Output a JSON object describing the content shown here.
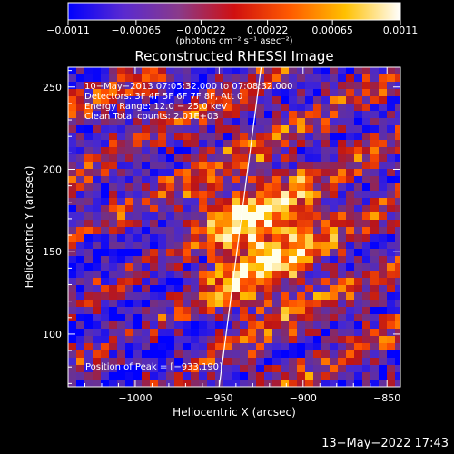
{
  "chart_data": {
    "type": "heatmap",
    "title": "Reconstructed RHESSI Image",
    "xlabel": "Heliocentric X (arcsec)",
    "ylabel": "Heliocentric Y (arcsec)",
    "xlim": [
      -1040,
      -842
    ],
    "ylim": [
      68,
      262
    ],
    "x_ticks": [
      -1000,
      -950,
      -900,
      -850
    ],
    "x_tick_labels": [
      "−1000",
      "−950",
      "−900",
      "−850"
    ],
    "y_ticks": [
      100,
      150,
      200,
      250
    ],
    "y_tick_labels": [
      "100",
      "150",
      "200",
      "250"
    ],
    "colorbar": {
      "range": [
        -0.0011,
        0.0011
      ],
      "ticks": [
        -0.0011,
        -0.00065,
        -0.00022,
        0.00022,
        0.00065,
        0.0011
      ],
      "tick_labels": [
        "−0.0011",
        "−0.00065",
        "−0.00022",
        "0.00022",
        "0.00065",
        "0.0011"
      ],
      "units": "(photons cm⁻² s⁻¹ asec⁻²)",
      "colors": [
        "#0000ff",
        "#5a2ad0",
        "#8a3a8a",
        "#d01010",
        "#ff5a00",
        "#ffc000",
        "#ffffff"
      ]
    },
    "annotations": [
      "10−May−2013 07:05:32.000 to 07:08:32.000",
      "Detectors: 3F 4F 5F 6F 7F 8F, Att 0",
      "Energy Range: 12.0 − 25.0 keV",
      "Clean     Total counts: 2.01E+03"
    ],
    "peak_label": "Position of Peak = [−933,190]",
    "peak": [
      -933,
      190
    ],
    "source_center": [
      -930,
      160
    ],
    "limb_line": [
      [
        -950,
        68
      ],
      [
        -925,
        262
      ]
    ],
    "grid": false
  },
  "footer": {
    "timestamp": "13−May−2022 17:43"
  }
}
